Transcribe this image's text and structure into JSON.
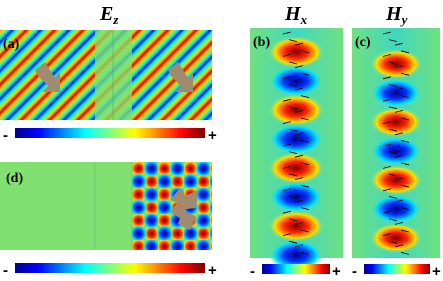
{
  "headings": [
    {
      "symbol": "E",
      "subscript": "z"
    },
    {
      "symbol": "H",
      "subscript": "x"
    },
    {
      "symbol": "H",
      "subscript": "y"
    }
  ],
  "panels": [
    {
      "label": "(a)"
    },
    {
      "label": "(b)"
    },
    {
      "label": "(c)"
    },
    {
      "label": "(d)"
    }
  ],
  "colorbars": [
    {
      "min": "-",
      "max": "+"
    },
    {
      "min": "-",
      "max": "+"
    },
    {
      "min": "-",
      "max": "+"
    },
    {
      "min": "-",
      "max": "+"
    }
  ]
}
